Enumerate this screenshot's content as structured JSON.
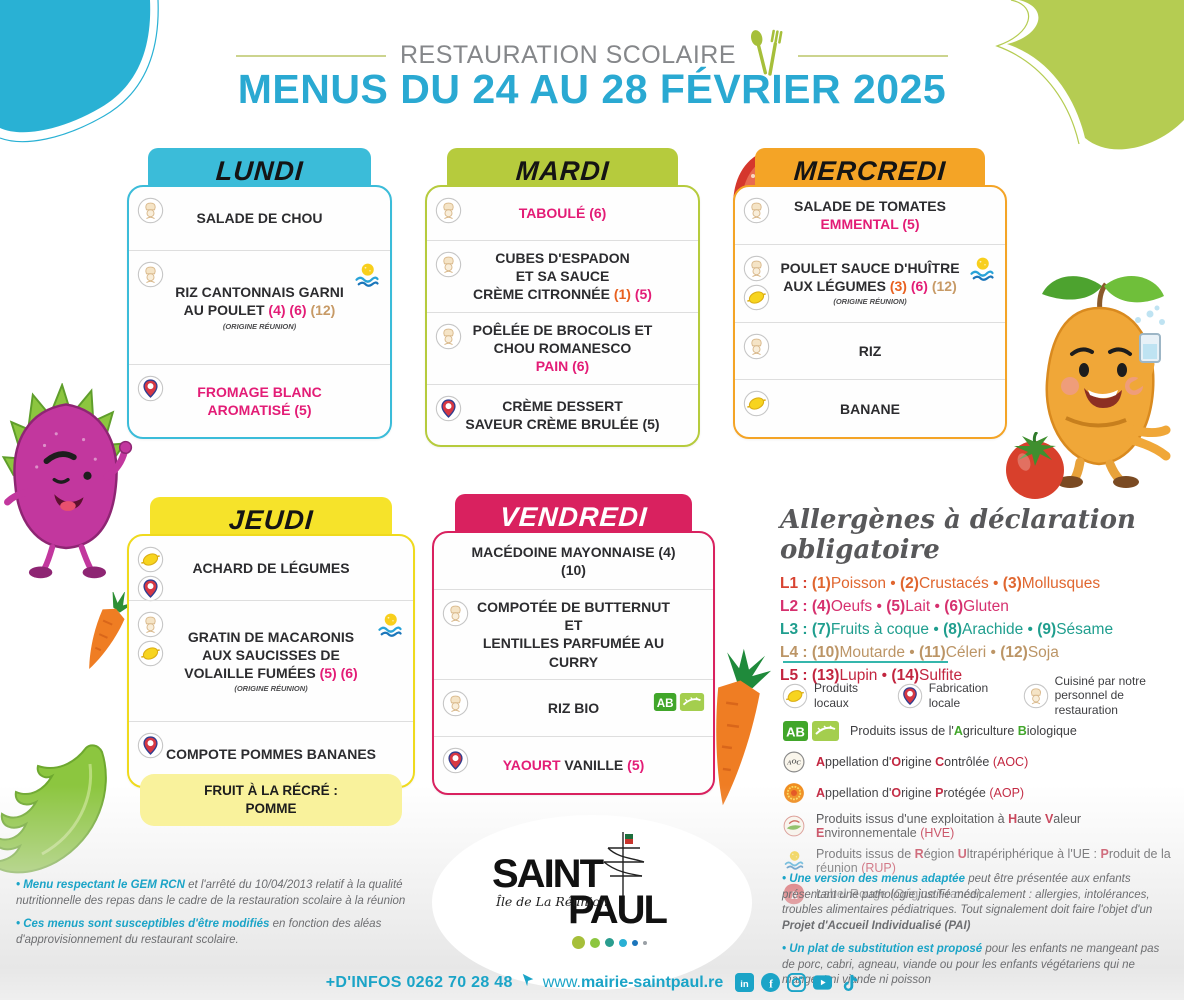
{
  "header": {
    "kicker": "RESTAURATION SCOLAIRE",
    "title": "MENUS DU 24 AU 28 FÉVRIER 2025"
  },
  "days": [
    {
      "key": "lundi",
      "name": "LUNDI",
      "items": [
        {
          "icons": [
            "chef"
          ],
          "parts": [
            {
              "t": "SALADE DE CHOU",
              "c": "dark"
            }
          ]
        },
        {
          "icons": [
            "chef"
          ],
          "grow": 2.1,
          "parts": [
            {
              "t": "RIZ CANTONNAIS GARNI\nAU POULET ",
              "c": "dark"
            },
            {
              "t": "(4) (6)",
              "c": "pink"
            },
            {
              "t": " ",
              "c": "dark"
            },
            {
              "t": "(12)",
              "c": "tan"
            }
          ],
          "sub": "(ORIGINE RÉUNION)",
          "right_icon": "rup"
        },
        {
          "icons": [
            "pin"
          ],
          "grow": 1.2,
          "parts": [
            {
              "t": "FROMAGE BLANC\nAROMATISÉ (5)",
              "c": "pink"
            }
          ]
        }
      ]
    },
    {
      "key": "mardi",
      "name": "MARDI",
      "items": [
        {
          "icons": [
            "chef"
          ],
          "parts": [
            {
              "t": "TABOULÉ (6)",
              "c": "pink"
            }
          ]
        },
        {
          "icons": [
            "chef"
          ],
          "grow": 1.5,
          "parts": [
            {
              "t": "CUBES D'ESPADON\nET SA SAUCE\nCRÈME CITRONNÉE ",
              "c": "dark"
            },
            {
              "t": "(1)",
              "c": "orange"
            },
            {
              "t": " ",
              "c": "dark"
            },
            {
              "t": "(5)",
              "c": "pink"
            }
          ]
        },
        {
          "icons": [
            "chef"
          ],
          "grow": 1.5,
          "parts": [
            {
              "t": "POÊLÉE DE BROCOLIS ET\nCHOU ROMANESCO\n",
              "c": "dark"
            },
            {
              "t": "PAIN (6)",
              "c": "pink"
            }
          ]
        },
        {
          "icons": [
            "pin"
          ],
          "grow": 1.2,
          "parts": [
            {
              "t": "CRÈME DESSERT\nSAVEUR CRÈME BRULÉE (5)",
              "c": "dark"
            }
          ]
        }
      ]
    },
    {
      "key": "mercredi",
      "name": "MERCREDI",
      "items": [
        {
          "icons": [
            "chef"
          ],
          "parts": [
            {
              "t": "SALADE DE TOMATES\n",
              "c": "dark"
            },
            {
              "t": "EMMENTAL (5)",
              "c": "pink"
            }
          ]
        },
        {
          "icons": [
            "chef",
            "lemon"
          ],
          "grow": 1.5,
          "parts": [
            {
              "t": "POULET SAUCE D'HUÎTRE\nAUX LÉGUMES ",
              "c": "dark"
            },
            {
              "t": "(3)",
              "c": "orange"
            },
            {
              "t": " ",
              "c": "dark"
            },
            {
              "t": "(6)",
              "c": "pink"
            },
            {
              "t": " ",
              "c": "dark"
            },
            {
              "t": "(12)",
              "c": "tan"
            }
          ],
          "sub": "(ORIGINE RÉUNION)",
          "right_icon": "rup"
        },
        {
          "icons": [
            "chef"
          ],
          "parts": [
            {
              "t": "RIZ",
              "c": "dark"
            }
          ]
        },
        {
          "icons": [
            "lemon"
          ],
          "parts": [
            {
              "t": "BANANE",
              "c": "dark"
            }
          ]
        }
      ]
    },
    {
      "key": "jeudi",
      "name": "JEUDI",
      "items": [
        {
          "icons": [
            "lemon",
            "pin"
          ],
          "parts": [
            {
              "t": "ACHARD DE LÉGUMES",
              "c": "dark"
            }
          ]
        },
        {
          "icons": [
            "chef",
            "lemon"
          ],
          "grow": 2.2,
          "parts": [
            {
              "t": "GRATIN DE MACARONIS\nAUX SAUCISSES DE\nVOLAILLE FUMÉES ",
              "c": "dark"
            },
            {
              "t": "(5) (6)",
              "c": "pink"
            }
          ],
          "sub": "(ORIGINE RÉUNION)",
          "right_icon": "rup"
        },
        {
          "icons": [
            "pin"
          ],
          "parts": [
            {
              "t": "COMPOTE POMMES BANANES",
              "c": "dark"
            }
          ]
        }
      ],
      "footer_pill": "FRUIT À LA RÉCRÉ :\nPOMME"
    },
    {
      "key": "vendredi",
      "name": "VENDREDI",
      "items": [
        {
          "icons": [],
          "parts": [
            {
              "t": "MACÉDOINE MAYONNAISE (4) (10)",
              "c": "dark"
            }
          ]
        },
        {
          "icons": [
            "chef"
          ],
          "grow": 1.2,
          "parts": [
            {
              "t": "COMPOTÉE DE BUTTERNUT ET\nLENTILLES PARFUMÉE AU CURRY",
              "c": "dark"
            }
          ]
        },
        {
          "icons": [
            "chef"
          ],
          "parts": [
            {
              "t": "RIZ BIO",
              "c": "dark"
            }
          ],
          "right_icon": "ab"
        },
        {
          "icons": [
            "pin"
          ],
          "parts": [
            {
              "t": "YAOURT ",
              "c": "pink"
            },
            {
              "t": "VANILLE ",
              "c": "dark"
            },
            {
              "t": "(5)",
              "c": "pink"
            }
          ]
        }
      ]
    }
  ],
  "allergens": {
    "title": "Allergènes à déclaration obligatoire",
    "lines": [
      {
        "label": "L1 :",
        "label_color": "#d84332",
        "item_color": "#e0662f",
        "items": [
          {
            "n": "(1)",
            "t": "Poisson"
          },
          {
            "n": "(2)",
            "t": "Crustacés"
          },
          {
            "n": "(3)",
            "t": "Mollusques"
          }
        ]
      },
      {
        "label": "L2 :",
        "label_color": "#d6306e",
        "item_color": "#d6306e",
        "items": [
          {
            "n": "(4)",
            "t": "Oeufs"
          },
          {
            "n": "(5)",
            "t": "Lait"
          },
          {
            "n": "(6)",
            "t": "Gluten"
          }
        ]
      },
      {
        "label": "L3 :",
        "label_color": "#1f9e8e",
        "item_color": "#1f9e8e",
        "items": [
          {
            "n": "(7)",
            "t": "Fruits à coque"
          },
          {
            "n": "(8)",
            "t": "Arachide"
          },
          {
            "n": "(9)",
            "t": "Sésame"
          }
        ]
      },
      {
        "label": "L4 :",
        "label_color": "#bc9566",
        "item_color": "#bc9566",
        "items": [
          {
            "n": "(10)",
            "t": "Moutarde"
          },
          {
            "n": "(11)",
            "t": "Céleri"
          },
          {
            "n": "(12)",
            "t": "Soja"
          }
        ]
      },
      {
        "label": "L5 :",
        "label_color": "#c2253f",
        "item_color": "#c2253f",
        "items": [
          {
            "n": "(13)",
            "t": "Lupin"
          },
          {
            "n": "(14)",
            "t": "Sulfite"
          }
        ]
      }
    ]
  },
  "legend": {
    "quick": [
      {
        "icon": "lemon",
        "label": "Produits locaux"
      },
      {
        "icon": "pin",
        "label": "Fabrication locale"
      },
      {
        "icon": "chef",
        "label": "Cuisiné par notre\npersonnel de restauration"
      }
    ],
    "rows": [
      {
        "icon": "ab",
        "segs": [
          {
            "t": "Produits issus de l'"
          },
          {
            "t": "A",
            "c": "green",
            "b": 1
          },
          {
            "t": "griculture "
          },
          {
            "t": "B",
            "c": "green",
            "b": 1
          },
          {
            "t": "iologique"
          }
        ]
      },
      {
        "icon": "aoc",
        "segs": [
          {
            "t": "A",
            "c": "red",
            "b": 1
          },
          {
            "t": "ppellation d'"
          },
          {
            "t": "O",
            "c": "red",
            "b": 1
          },
          {
            "t": "rigine "
          },
          {
            "t": "C",
            "c": "red",
            "b": 1
          },
          {
            "t": "ontrôlée "
          },
          {
            "t": "(AOC)",
            "c": "red"
          }
        ]
      },
      {
        "icon": "aop",
        "segs": [
          {
            "t": "A",
            "c": "red",
            "b": 1
          },
          {
            "t": "ppellation d'"
          },
          {
            "t": "O",
            "c": "red",
            "b": 1
          },
          {
            "t": "rigine "
          },
          {
            "t": "P",
            "c": "red",
            "b": 1
          },
          {
            "t": "rotégée "
          },
          {
            "t": "(AOP)",
            "c": "red"
          }
        ]
      },
      {
        "icon": "hve",
        "segs": [
          {
            "t": "Produits issus d'une exploitation à "
          },
          {
            "t": "H",
            "c": "red",
            "b": 1
          },
          {
            "t": "aute "
          },
          {
            "t": "V",
            "c": "red",
            "b": 1
          },
          {
            "t": "aleur "
          },
          {
            "t": "E",
            "c": "red",
            "b": 1
          },
          {
            "t": "nvironnementale "
          },
          {
            "t": "(HVE)",
            "c": "red"
          }
        ]
      },
      {
        "icon": "rup",
        "segs": [
          {
            "t": "Produits issus de "
          },
          {
            "t": "R",
            "c": "red",
            "b": 1
          },
          {
            "t": "égion "
          },
          {
            "t": "U",
            "c": "red",
            "b": 1
          },
          {
            "t": "ltrapériphérique à l'UE : "
          },
          {
            "t": "P",
            "c": "red",
            "b": 1
          },
          {
            "t": "roduit de la réunion "
          },
          {
            "t": "(RUP)",
            "c": "red"
          }
        ]
      },
      {
        "icon": "labelrouge",
        "segs": [
          {
            "t": "Label Rouge (Origine France)"
          }
        ]
      }
    ]
  },
  "notes_left": [
    {
      "segs": [
        {
          "t": "• Menu respectant le GEM RCN ",
          "c": "cyan",
          "b": 1
        },
        {
          "t": "et l'arrêté du 10/04/2013 relatif à la qualité nutritionnelle des repas dans le cadre de la restauration scolaire à la réunion"
        }
      ]
    },
    {
      "segs": [
        {
          "t": "• Ces menus sont susceptibles d'être modifiés ",
          "c": "cyan",
          "b": 1
        },
        {
          "t": "en fonction des aléas d'approvisionnement du restaurant scolaire."
        }
      ]
    }
  ],
  "notes_right": [
    {
      "segs": [
        {
          "t": "• Une version des menus adaptée ",
          "c": "cyan",
          "b": 1
        },
        {
          "t": "peut être présentée aux enfants présentant une pathologie justifié médicalement : allergies, intolérances, troubles alimentaires pédiatriques. Tout signalement doit faire l'objet d'un "
        },
        {
          "t": "Projet d'Accueil Individualisé (PAI)",
          "b": 1
        }
      ]
    },
    {
      "segs": [
        {
          "t": "• Un plat de substitution est proposé ",
          "c": "cyan",
          "b": 1
        },
        {
          "t": "pour les enfants ne mangeant pas de porc, cabri, agneau, viande ou pour les enfants végétariens qui ne mangent ni viande ni poisson"
        }
      ]
    }
  ],
  "logo": {
    "top": "SAINT",
    "bottom": "PAUL",
    "tagline": "Île de La Réunion"
  },
  "footer": {
    "infos": "+D'INFOS 0262 70 28 48",
    "website_prefix": "www.",
    "website": "mairie-saintpaul.re",
    "socials": [
      "linkedin",
      "facebook",
      "instagram",
      "youtube",
      "tiktok"
    ]
  },
  "colors": {
    "accent_cyan": "#2aa9d2",
    "lundi": "#3bbcd9",
    "mardi": "#b6cb3d",
    "mercredi": "#f4a426",
    "jeudi": "#f6e32a",
    "vendredi": "#d9215f",
    "allergen_underline": "#35b6ac"
  }
}
